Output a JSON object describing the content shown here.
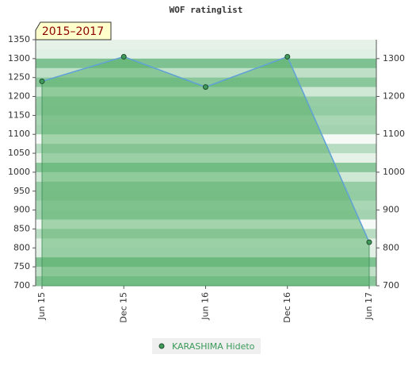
{
  "chart_data": {
    "type": "line",
    "title": "WOF ratinglist",
    "annotation": "2015–2017",
    "categories": [
      "Jun 15",
      "Dec 15",
      "Jun 16",
      "Dec 16",
      "Jun 17"
    ],
    "series": [
      {
        "name": "KARASHIMA Hideto",
        "color": "#5fa0d8",
        "values": [
          1240,
          1305,
          1225,
          1305,
          815
        ]
      }
    ],
    "ylim": [
      700,
      1350
    ],
    "yticks": [
      700,
      750,
      800,
      850,
      900,
      950,
      1000,
      1050,
      1100,
      1150,
      1200,
      1250,
      1300,
      1350
    ],
    "y2lim": [
      700,
      1350
    ],
    "y2ticks": [
      700,
      800,
      900,
      1000,
      1100,
      1200,
      1300
    ],
    "fill": "#5db36e",
    "marker_color": "#3f9a5c"
  }
}
